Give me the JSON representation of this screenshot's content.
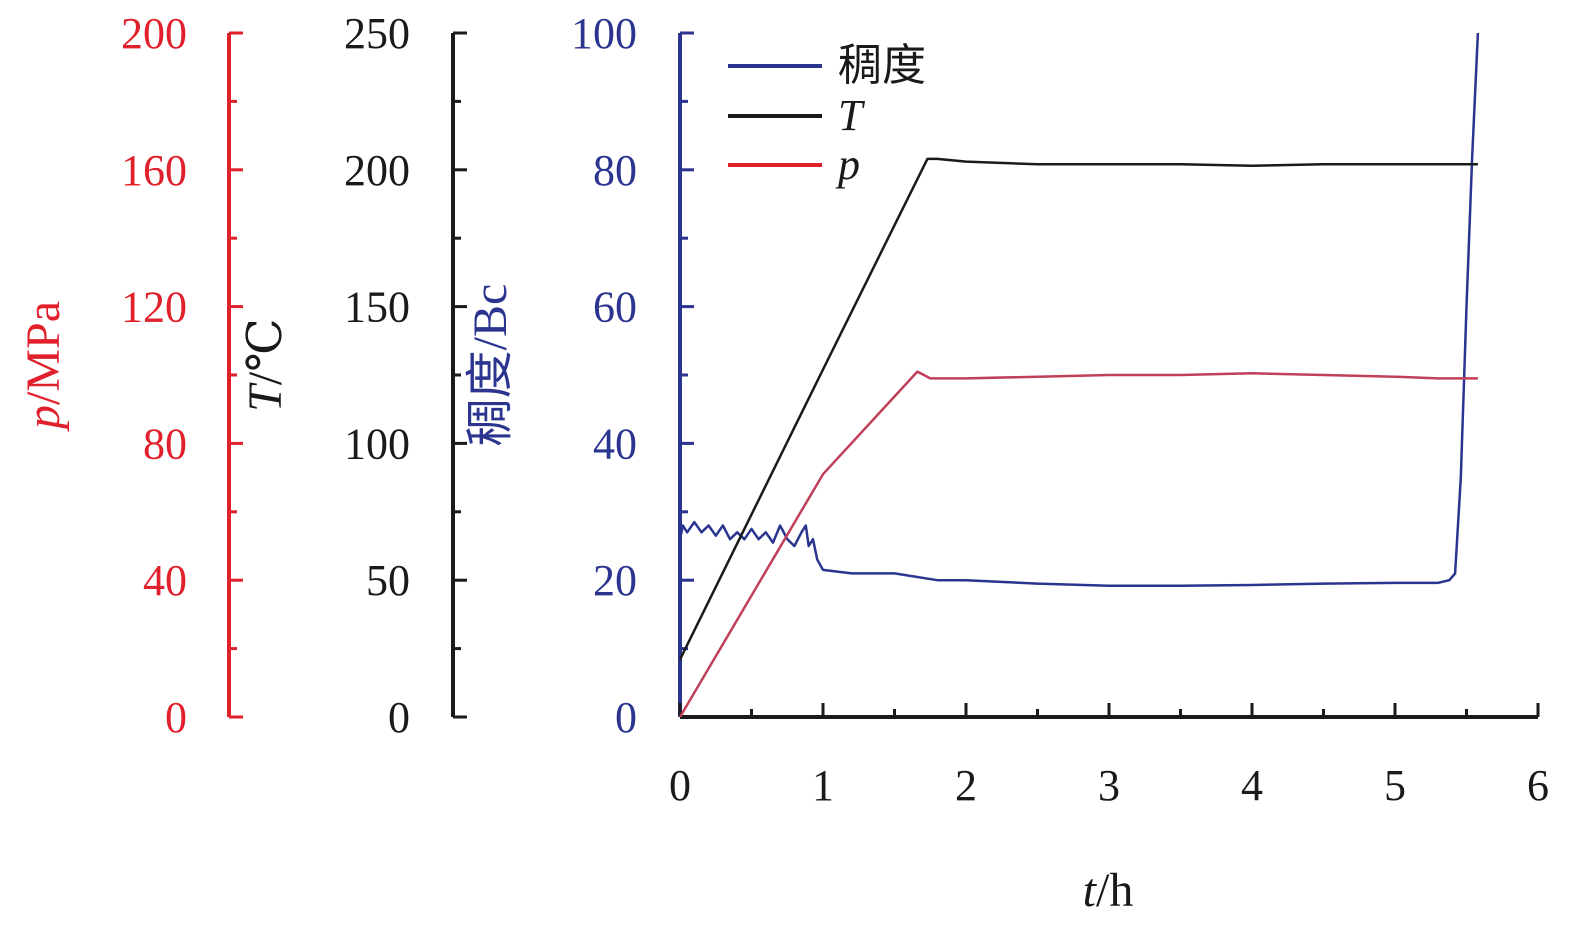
{
  "chart_data": {
    "type": "line",
    "x_axis": {
      "label_var": "t",
      "label_unit": "/h",
      "ticks": [
        0,
        1,
        2,
        3,
        4,
        5,
        6
      ],
      "range": [
        0,
        6
      ]
    },
    "y_axes": [
      {
        "id": "pressure",
        "label_var": "p",
        "label_unit": "/MPa",
        "range": [
          0,
          200
        ],
        "ticks": [
          0,
          40,
          80,
          120,
          160,
          200
        ],
        "color": "#e0202a"
      },
      {
        "id": "temperature",
        "label_var": "T",
        "label_unit": "/℃",
        "range": [
          0,
          250
        ],
        "ticks": [
          0,
          50,
          100,
          150,
          200,
          250
        ],
        "color": "#1a1a1a"
      },
      {
        "id": "consistency",
        "label_var": "",
        "label_prefix": "稠度",
        "label_unit": "/Bc",
        "range": [
          0,
          100
        ],
        "ticks": [
          0,
          20,
          40,
          60,
          80,
          100
        ],
        "color": "#2b3590"
      }
    ],
    "legend": {
      "position": "top-left",
      "entries": [
        {
          "label": "稠度",
          "italic": false,
          "color": "#2b3590"
        },
        {
          "label": "T",
          "italic": true,
          "color": "#1a1a1a"
        },
        {
          "label": "p",
          "italic": true,
          "color": "#e0202a"
        }
      ]
    },
    "series": [
      {
        "name": "稠度",
        "axis": "consistency",
        "color": "#2b3590",
        "x": [
          0,
          0.02,
          0.05,
          0.1,
          0.15,
          0.2,
          0.25,
          0.3,
          0.35,
          0.4,
          0.45,
          0.5,
          0.55,
          0.6,
          0.65,
          0.7,
          0.75,
          0.8,
          0.85,
          0.88,
          0.9,
          0.93,
          0.96,
          1.0,
          1.2,
          1.5,
          1.8,
          2.0,
          2.5,
          3.0,
          3.5,
          4.0,
          4.5,
          5.0,
          5.3,
          5.38,
          5.42,
          5.46,
          5.5,
          5.54,
          5.58
        ],
        "y": [
          26,
          28,
          27,
          28.5,
          27,
          28,
          26.5,
          28,
          26,
          27,
          26,
          27.5,
          26,
          27,
          25.5,
          28,
          26,
          25,
          27,
          28,
          25,
          26,
          23,
          21.5,
          21,
          21,
          20,
          20,
          19.5,
          19.2,
          19.2,
          19.3,
          19.5,
          19.6,
          19.6,
          20,
          21,
          35,
          60,
          82,
          100
        ]
      },
      {
        "name": "T",
        "axis": "temperature",
        "color": "#1a1a1a",
        "x": [
          0,
          1.0,
          1.73,
          1.8,
          2.0,
          2.5,
          3.0,
          3.5,
          4.0,
          4.5,
          5.0,
          5.3,
          5.58
        ],
        "y": [
          21,
          127,
          204,
          204,
          203,
          202,
          202,
          202,
          201.5,
          202,
          202,
          202,
          202
        ]
      },
      {
        "name": "p",
        "axis": "pressure",
        "color": "#c0405a",
        "x": [
          0,
          1.0,
          1.66,
          1.75,
          2.0,
          2.5,
          3.0,
          3.5,
          4.0,
          4.5,
          5.0,
          5.3,
          5.58
        ],
        "y": [
          0,
          71,
          101,
          99,
          99,
          99.5,
          100,
          100,
          100.5,
          100,
          99.5,
          99,
          99
        ]
      }
    ]
  }
}
